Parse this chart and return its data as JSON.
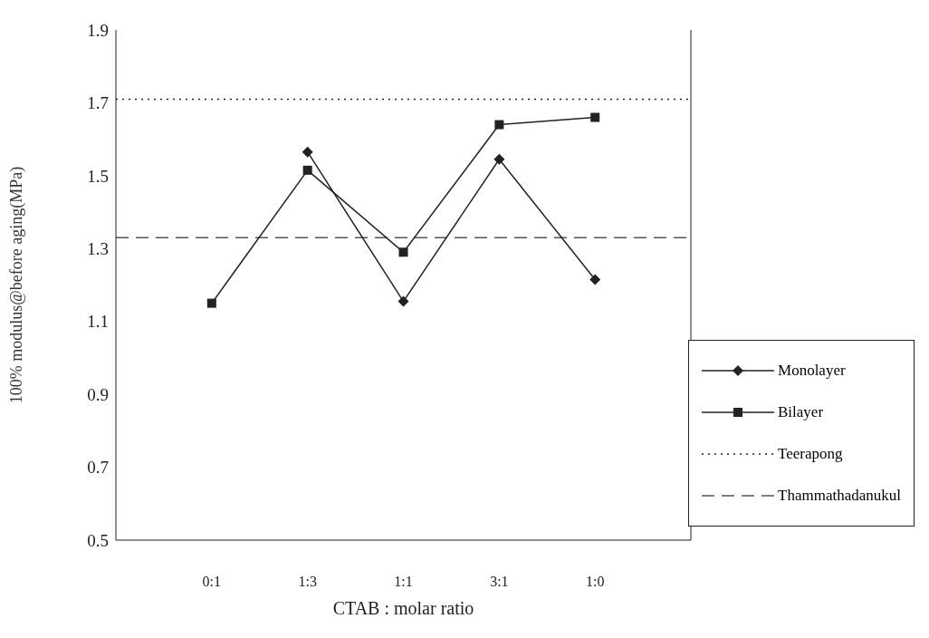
{
  "chart_data": {
    "type": "line",
    "xlabel": "CTAB : molar ratio",
    "ylabel": "100% modulus@before aging(MPa)",
    "categories": [
      "0:1",
      "1:3",
      "1:1",
      "3:1",
      "1:0"
    ],
    "series": [
      {
        "name": "Monolayer",
        "color": "#222222",
        "marker": "diamond",
        "values": [
          null,
          1.565,
          1.155,
          1.545,
          1.215
        ]
      },
      {
        "name": "Bilayer",
        "color": "#222222",
        "marker": "square",
        "values": [
          1.15,
          1.515,
          1.29,
          1.64,
          1.66
        ]
      }
    ],
    "ref_lines": [
      {
        "axis": "y",
        "value": 1.71,
        "label": "Teerapong",
        "line_style": "dotted",
        "color": "#222222"
      },
      {
        "axis": "y",
        "value": 1.33,
        "label": "Thammathadanukul",
        "line_style": "dashed",
        "color": "#555555"
      }
    ],
    "ylim": [
      0.5,
      1.9
    ],
    "yticks": [
      0.5,
      0.7,
      0.9,
      1.1,
      1.3,
      1.5,
      1.7,
      1.9
    ],
    "grid": false,
    "legend": "bottom right",
    "line_style": "solid"
  }
}
